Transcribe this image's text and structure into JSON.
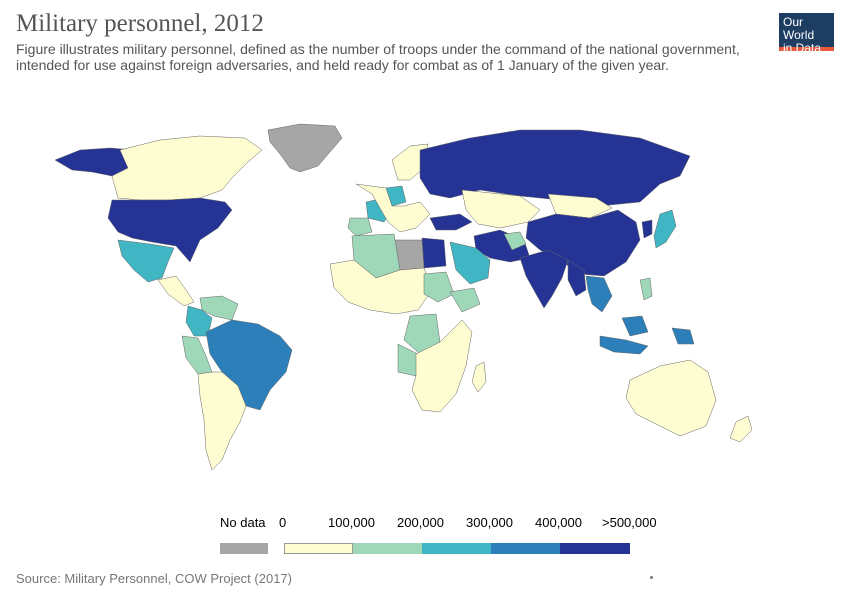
{
  "header": {
    "title": "Military personnel, 2012",
    "subtitle": "Figure illustrates military personnel, defined as the number of troops under the command of the national government, intended for use against foreign adversaries, and held ready for combat as of 1 January of the given year."
  },
  "logo": {
    "line1": "Our World",
    "line2": "in Data"
  },
  "legend": {
    "no_data_label": "No data",
    "no_data_color": "#a6a6a6",
    "bins": [
      {
        "label": "0",
        "color": "#fefdd2"
      },
      {
        "label": "100,000",
        "color": "#9fd8b9"
      },
      {
        "label": "200,000",
        "color": "#40b5c4"
      },
      {
        "label": "300,000",
        "color": "#2c7fb8"
      },
      {
        "label": "400,000",
        "color": "#253494"
      }
    ],
    "max_label": ">500,000"
  },
  "footer": {
    "source": "Source: Military Personnel, COW Project (2017)"
  },
  "colors": {
    "bin0": "#fefdd2",
    "bin1": "#9fd8b9",
    "bin2": "#40b5c4",
    "bin3": "#2c7fb8",
    "bin4": "#253494",
    "nodata": "#a6a6a6"
  }
}
